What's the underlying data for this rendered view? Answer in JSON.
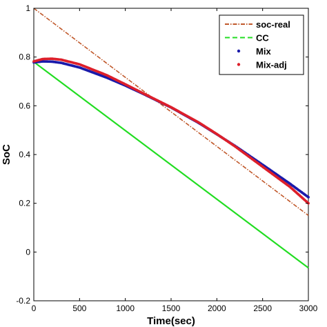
{
  "chart_data": {
    "type": "line",
    "title": "",
    "xlabel": "Time(sec)",
    "ylabel": "SoC",
    "xlim": [
      0,
      3000
    ],
    "ylim": [
      -0.2,
      1
    ],
    "x_ticks": [
      "0",
      "500",
      "1000",
      "1500",
      "2000",
      "2500",
      "3000"
    ],
    "y_ticks": [
      "-0.2",
      "0",
      "0.2",
      "0.4",
      "0.6",
      "0.8",
      "1"
    ],
    "grid": false,
    "legend_position": "top-right",
    "series": [
      {
        "name": "soc-real",
        "style": "dash-dot",
        "color": "#c0582a",
        "x": [
          0,
          3000
        ],
        "y": [
          1.0,
          0.15
        ]
      },
      {
        "name": "CC",
        "style": "dashed",
        "color": "#22dd22",
        "x": [
          0,
          3000
        ],
        "y": [
          0.78,
          -0.065
        ]
      },
      {
        "name": "Mix",
        "style": "dot",
        "color": "#1a1aaa",
        "x": [
          0,
          100,
          200,
          300,
          500,
          800,
          1000,
          1200,
          1500,
          1800,
          2000,
          2200,
          2500,
          2800,
          3000
        ],
        "y": [
          0.778,
          0.782,
          0.781,
          0.776,
          0.757,
          0.715,
          0.683,
          0.648,
          0.593,
          0.53,
          0.483,
          0.435,
          0.358,
          0.28,
          0.225
        ]
      },
      {
        "name": "Mix-adj",
        "style": "dot",
        "color": "#dd1f2a",
        "x": [
          0,
          100,
          200,
          300,
          500,
          800,
          1000,
          1200,
          1500,
          1800,
          2000,
          2200,
          2500,
          2800,
          3000
        ],
        "y": [
          0.782,
          0.792,
          0.793,
          0.789,
          0.77,
          0.725,
          0.688,
          0.65,
          0.594,
          0.532,
          0.484,
          0.433,
          0.35,
          0.267,
          0.2
        ]
      }
    ]
  }
}
